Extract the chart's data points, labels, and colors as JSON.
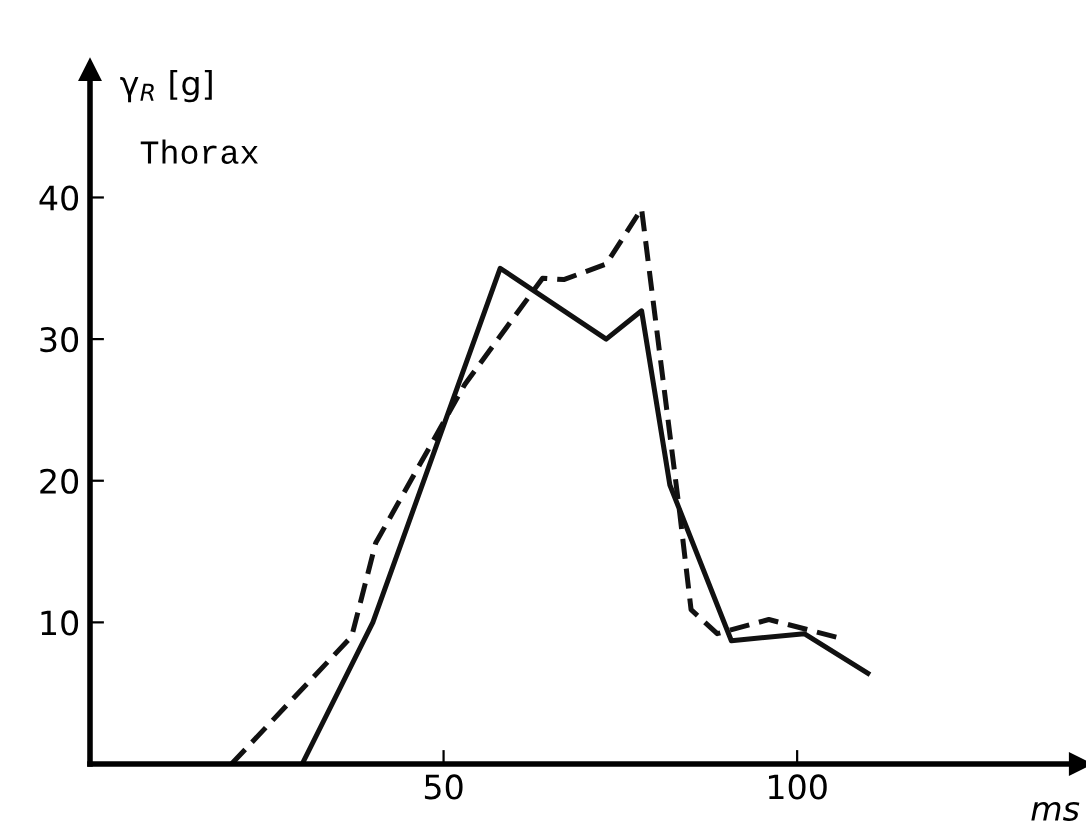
{
  "chart_data": {
    "type": "line",
    "ylabel": "γ$_{R}$ [g]",
    "xlabel": "ms",
    "annotations": [
      "Thorax"
    ],
    "xlim": [
      0,
      140
    ],
    "ylim": [
      0,
      49
    ],
    "xticks": [
      50,
      100
    ],
    "yticks": [
      10,
      20,
      30,
      40
    ],
    "grid": false,
    "legend": false,
    "marker": "none",
    "series": [
      {
        "color": "#111111",
        "line_style": "solid",
        "x": [
          30,
          40,
          58,
          73,
          78,
          82,
          90.7,
          101,
          110
        ],
        "values": [
          0,
          10,
          35,
          30,
          32,
          19.7,
          8.7,
          9.2,
          6.4
        ]
      },
      {
        "color": "#111111",
        "line_style": "dashed",
        "x": [
          20,
          37,
          40.4,
          53,
          64,
          67,
          73,
          78,
          83.4,
          85,
          88.7,
          96,
          106
        ],
        "values": [
          0,
          9,
          15.6,
          26.8,
          34.3,
          34.2,
          35.3,
          39.2,
          17.7,
          10.9,
          9.2,
          10.2,
          8.9
        ]
      }
    ]
  }
}
